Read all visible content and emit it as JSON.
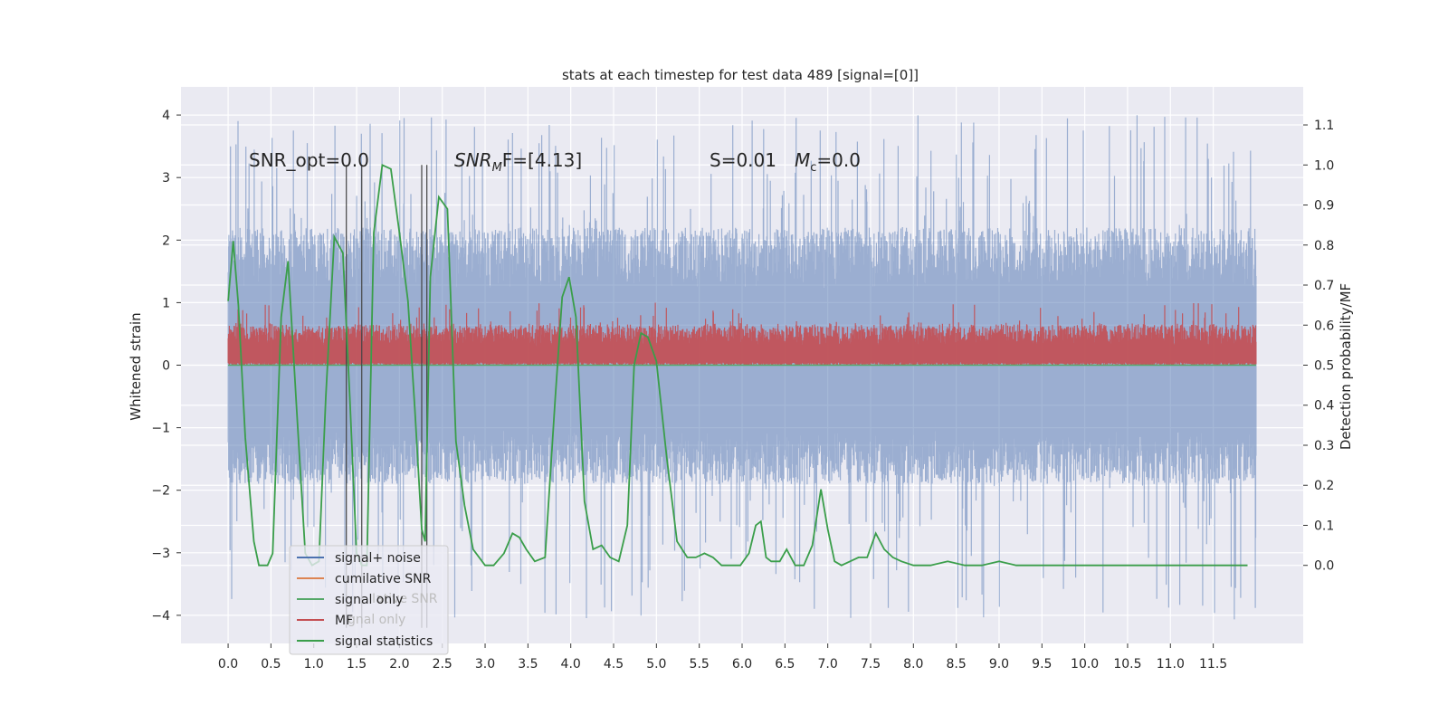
{
  "chart_data": {
    "type": "line",
    "title": "stats at each timestep for test data 489 [signal=[0]]",
    "xlabel": "",
    "ylabel": "Whitened strain",
    "y2label": "Detection probability/MF",
    "xlim": [
      -0.55,
      12.55
    ],
    "ylim": [
      -4.45,
      4.45
    ],
    "y2lim": [
      -0.195,
      1.195
    ],
    "xticks": [
      "0.0",
      "0.5",
      "1.0",
      "1.5",
      "2.0",
      "2.5",
      "3.0",
      "3.5",
      "4.0",
      "4.5",
      "5.0",
      "5.5",
      "6.0",
      "6.5",
      "7.0",
      "7.5",
      "8.0",
      "8.5",
      "9.0",
      "9.5",
      "10.0",
      "10.5",
      "11.0",
      "11.5"
    ],
    "yticks": [
      4,
      3,
      2,
      1,
      0,
      -1,
      -2,
      -3,
      -4
    ],
    "y2ticks": [
      "1.1",
      "1.0",
      "0.9",
      "0.8",
      "0.7",
      "0.6",
      "0.5",
      "0.4",
      "0.3",
      "0.2",
      "0.1",
      "0.0"
    ],
    "grid": true,
    "legend_position": "lower-left",
    "colors": {
      "background": "#eaeaf2",
      "noise": "#4c72b0",
      "snr": "#dd8452",
      "signal_only": "#55a868",
      "mf": "#c44e52",
      "stat": "#3a9e4a",
      "vline": "#444444"
    },
    "annotations": {
      "snr_opt": "SNR_opt=0.0",
      "snr_mf_base": "SNR",
      "snr_mf_sub": "M",
      "snr_mf_rest": "F=[4.13]",
      "s_val": "S=0.01",
      "mc_base": "M",
      "mc_sub": "c",
      "mc_rest": "=0.0"
    },
    "legend": [
      {
        "label": "signal+ noise",
        "color": "#4c72b0"
      },
      {
        "label": "cumilative SNR",
        "color": "#dd8452"
      },
      {
        "label": "signal only",
        "color": "#55a868"
      },
      {
        "label": "MF",
        "color": "#c44e52"
      },
      {
        "label": "signal statistics",
        "color": "#3a9e4a"
      }
    ],
    "legend_ghost": [
      "Iative SNR",
      "gnal only"
    ],
    "series": [
      {
        "name": "signal+ noise",
        "type": "noise_band",
        "x_range": [
          0.0,
          12.0
        ],
        "typical_range": [
          -1.9,
          2.2
        ],
        "peak_range": [
          -4.1,
          4.0
        ],
        "axis": "left"
      },
      {
        "name": "MF",
        "type": "noise_band",
        "x_range": [
          0.0,
          12.0
        ],
        "typical_range": [
          0.05,
          0.6
        ],
        "peak_range": [
          0.0,
          1.0
        ],
        "axis": "left"
      },
      {
        "name": "signal only",
        "type": "line",
        "x": [
          0.0,
          12.0
        ],
        "values": [
          0.0,
          0.0
        ],
        "axis": "left"
      },
      {
        "name": "signal statistics",
        "type": "line",
        "axis": "right",
        "x": [
          0.0,
          0.06,
          0.12,
          0.2,
          0.3,
          0.36,
          0.46,
          0.52,
          0.62,
          0.7,
          0.8,
          0.9,
          0.98,
          1.06,
          1.14,
          1.24,
          1.34,
          1.42,
          1.5,
          1.56,
          1.62,
          1.7,
          1.8,
          1.9,
          2.0,
          2.1,
          2.18,
          2.26,
          2.3,
          2.36,
          2.46,
          2.56,
          2.66,
          2.76,
          2.86,
          3.0,
          3.1,
          3.22,
          3.32,
          3.4,
          3.48,
          3.58,
          3.7,
          3.82,
          3.9,
          3.98,
          4.06,
          4.16,
          4.26,
          4.36,
          4.46,
          4.56,
          4.66,
          4.74,
          4.82,
          4.9,
          5.0,
          5.12,
          5.24,
          5.36,
          5.46,
          5.56,
          5.66,
          5.76,
          5.88,
          5.98,
          6.08,
          6.16,
          6.22,
          6.28,
          6.34,
          6.44,
          6.52,
          6.62,
          6.72,
          6.82,
          6.92,
          7.0,
          7.08,
          7.16,
          7.26,
          7.36,
          7.46,
          7.56,
          7.66,
          7.76,
          7.86,
          8.0,
          8.2,
          8.4,
          8.6,
          8.8,
          9.0,
          9.2,
          9.6,
          10.0,
          10.2,
          10.4,
          10.6,
          11.0,
          11.5,
          11.9
        ],
        "values": [
          0.66,
          0.81,
          0.65,
          0.32,
          0.06,
          0.0,
          0.0,
          0.03,
          0.62,
          0.76,
          0.39,
          0.03,
          0.0,
          0.01,
          0.42,
          0.82,
          0.78,
          0.42,
          0.03,
          0.0,
          0.0,
          0.83,
          1.0,
          0.99,
          0.83,
          0.66,
          0.39,
          0.09,
          0.06,
          0.72,
          0.92,
          0.89,
          0.31,
          0.15,
          0.04,
          0.0,
          0.0,
          0.03,
          0.08,
          0.07,
          0.04,
          0.01,
          0.02,
          0.42,
          0.67,
          0.72,
          0.62,
          0.16,
          0.04,
          0.05,
          0.02,
          0.01,
          0.1,
          0.5,
          0.58,
          0.57,
          0.51,
          0.27,
          0.06,
          0.02,
          0.02,
          0.03,
          0.02,
          0.0,
          0.0,
          0.0,
          0.03,
          0.1,
          0.11,
          0.02,
          0.01,
          0.01,
          0.04,
          0.0,
          0.0,
          0.05,
          0.19,
          0.09,
          0.01,
          0.0,
          0.01,
          0.02,
          0.02,
          0.08,
          0.04,
          0.02,
          0.01,
          0.0,
          0.0,
          0.01,
          0.0,
          0.0,
          0.01,
          0.0,
          0.0,
          0.0,
          0.0,
          0.0,
          0.0,
          0.0,
          0.0,
          0.0
        ]
      }
    ],
    "vertical_lines_x": [
      1.38,
      1.56,
      2.26,
      2.32
    ]
  }
}
